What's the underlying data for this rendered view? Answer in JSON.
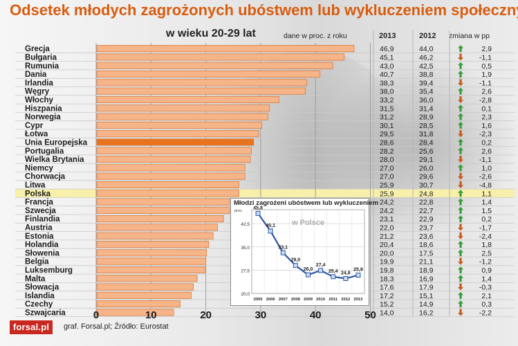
{
  "header": {
    "title": "Odsetek młodych zagrożonych ubóstwem lub wykluczeniem społecznym",
    "subtitle": "w wieku 20-29 lat",
    "unit_note": "dane w proc. z roku",
    "year1": "2013",
    "year2": "2012",
    "change_label": "zmiana w pp"
  },
  "footer": {
    "logo": "forsal.pl",
    "source": "graf. Forsal.pl; Źródło: Eurostat"
  },
  "colors": {
    "bar": "#f6b489",
    "bar_highlight": "#e7731f",
    "title": "#d95c0e",
    "row_highlight": "#f7efaa",
    "arrow_up": "#3a9a3a",
    "arrow_down": "#c55a1e",
    "inset_line": "#2d55a0"
  },
  "chart_data": [
    {
      "type": "bar",
      "orientation": "horizontal",
      "xlim": [
        0,
        50
      ],
      "xticks": [
        "0",
        "10",
        "20",
        "30",
        "40",
        "50"
      ],
      "highlight_bar": "Unia Europejska",
      "highlight_row": "Polska",
      "rows": [
        {
          "country": "Grecja",
          "v2013": 46.9,
          "v2013_label": "46,9",
          "v2012_label": "44,0",
          "dir": "up",
          "change_label": "2,9"
        },
        {
          "country": "Bułgaria",
          "v2013": 45.1,
          "v2013_label": "45,1",
          "v2012_label": "46,2",
          "dir": "down",
          "change_label": "-1,1"
        },
        {
          "country": "Rumunia",
          "v2013": 43.0,
          "v2013_label": "43,0",
          "v2012_label": "42,5",
          "dir": "up",
          "change_label": "0,5"
        },
        {
          "country": "Dania",
          "v2013": 40.7,
          "v2013_label": "40,7",
          "v2012_label": "38,8",
          "dir": "up",
          "change_label": "1,9"
        },
        {
          "country": "Irlandia",
          "v2013": 38.3,
          "v2013_label": "38,3",
          "v2012_label": "39,4",
          "dir": "down",
          "change_label": "-1,1"
        },
        {
          "country": "Węgry",
          "v2013": 38.0,
          "v2013_label": "38,0",
          "v2012_label": "35,4",
          "dir": "up",
          "change_label": "2,6"
        },
        {
          "country": "Włochy",
          "v2013": 33.2,
          "v2013_label": "33,2",
          "v2012_label": "36,0",
          "dir": "down",
          "change_label": "-2,8"
        },
        {
          "country": "Hiszpania",
          "v2013": 31.5,
          "v2013_label": "31,5",
          "v2012_label": "31,4",
          "dir": "up",
          "change_label": "0,1"
        },
        {
          "country": "Norwegia",
          "v2013": 31.2,
          "v2013_label": "31,2",
          "v2012_label": "28,9",
          "dir": "up",
          "change_label": "2,3"
        },
        {
          "country": "Cypr",
          "v2013": 30.1,
          "v2013_label": "30,1",
          "v2012_label": "28,5",
          "dir": "up",
          "change_label": "1,6"
        },
        {
          "country": "Łotwa",
          "v2013": 29.5,
          "v2013_label": "29,5",
          "v2012_label": "31,8",
          "dir": "down",
          "change_label": "-2,3"
        },
        {
          "country": "Unia Europejska",
          "v2013": 28.6,
          "v2013_label": "28,6",
          "v2012_label": "28,4",
          "dir": "up",
          "change_label": "0,2"
        },
        {
          "country": "Portugalia",
          "v2013": 28.2,
          "v2013_label": "28,2",
          "v2012_label": "25,6",
          "dir": "up",
          "change_label": "2,6"
        },
        {
          "country": "Wielka Brytania",
          "v2013": 28.0,
          "v2013_label": "28,0",
          "v2012_label": "29,1",
          "dir": "down",
          "change_label": "-1,1"
        },
        {
          "country": "Niemcy",
          "v2013": 27.0,
          "v2013_label": "27,0",
          "v2012_label": "26,0",
          "dir": "up",
          "change_label": "1,0"
        },
        {
          "country": "Chorwacja",
          "v2013": 27.0,
          "v2013_label": "27,0",
          "v2012_label": "29,6",
          "dir": "down",
          "change_label": "-2,6"
        },
        {
          "country": "Litwa",
          "v2013": 25.9,
          "v2013_label": "25,9",
          "v2012_label": "30,7",
          "dir": "down",
          "change_label": "-4,8"
        },
        {
          "country": "Polska",
          "v2013": 25.9,
          "v2013_label": "25,9",
          "v2012_label": "24,8",
          "dir": "up",
          "change_label": "1,1"
        },
        {
          "country": "Francja",
          "v2013": 24.2,
          "v2013_label": "24,2",
          "v2012_label": "22,8",
          "dir": "up",
          "change_label": "1,4"
        },
        {
          "country": "Szwecja",
          "v2013": 24.2,
          "v2013_label": "24,2",
          "v2012_label": "22,7",
          "dir": "up",
          "change_label": "1,5"
        },
        {
          "country": "Finlandia",
          "v2013": 23.1,
          "v2013_label": "23,1",
          "v2012_label": "22,9",
          "dir": "up",
          "change_label": "0,2"
        },
        {
          "country": "Austria",
          "v2013": 22.0,
          "v2013_label": "22,0",
          "v2012_label": "23,7",
          "dir": "down",
          "change_label": "-1,7"
        },
        {
          "country": "Estonia",
          "v2013": 21.2,
          "v2013_label": "21,2",
          "v2012_label": "23,6",
          "dir": "down",
          "change_label": "-2,4"
        },
        {
          "country": "Holandia",
          "v2013": 20.4,
          "v2013_label": "20,4",
          "v2012_label": "18,6",
          "dir": "up",
          "change_label": "1,8"
        },
        {
          "country": "Słowenia",
          "v2013": 20.0,
          "v2013_label": "20,0",
          "v2012_label": "17,5",
          "dir": "up",
          "change_label": "2,5"
        },
        {
          "country": "Belgia",
          "v2013": 19.9,
          "v2013_label": "19,9",
          "v2012_label": "21,1",
          "dir": "down",
          "change_label": "-1,2"
        },
        {
          "country": "Luksemburg",
          "v2013": 19.8,
          "v2013_label": "19,8",
          "v2012_label": "18,9",
          "dir": "up",
          "change_label": "0,9"
        },
        {
          "country": "Malta",
          "v2013": 18.3,
          "v2013_label": "18,3",
          "v2012_label": "16,9",
          "dir": "up",
          "change_label": "1,4"
        },
        {
          "country": "Słowacja",
          "v2013": 17.6,
          "v2013_label": "17,6",
          "v2012_label": "17,9",
          "dir": "down",
          "change_label": "-0,3"
        },
        {
          "country": "Islandia",
          "v2013": 17.2,
          "v2013_label": "17,2",
          "v2012_label": "15,1",
          "dir": "up",
          "change_label": "2,1"
        },
        {
          "country": "Czechy",
          "v2013": 15.2,
          "v2013_label": "15,2",
          "v2012_label": "14,9",
          "dir": "up",
          "change_label": "0,3"
        },
        {
          "country": "Szwajcaria",
          "v2013": 14.0,
          "v2013_label": "14,0",
          "v2012_label": "16,2",
          "dir": "down",
          "change_label": "-2,2"
        }
      ]
    },
    {
      "type": "line",
      "title": "Młodzi zagrożeni ubóstwem lub wykluczeniem",
      "subtitle": "w Polsce",
      "y_unit": "proc.",
      "ylim": [
        20,
        47
      ],
      "yticks": [
        "20,0",
        "27,5",
        "35,0",
        "42,5"
      ],
      "ytick_values": [
        20,
        27.5,
        35,
        42.5
      ],
      "x": [
        "2005",
        "2006",
        "2007",
        "2008",
        "2009",
        "2010",
        "2011",
        "2012",
        "2013"
      ],
      "values": [
        45.8,
        40.1,
        33.1,
        29.0,
        26.0,
        27.4,
        25.4,
        24.8,
        25.9
      ],
      "value_labels": [
        "45,8",
        "40,1",
        "33,1",
        "29,0",
        "26,0",
        "27,4",
        "25,4",
        "24,8",
        "25,9"
      ]
    }
  ]
}
